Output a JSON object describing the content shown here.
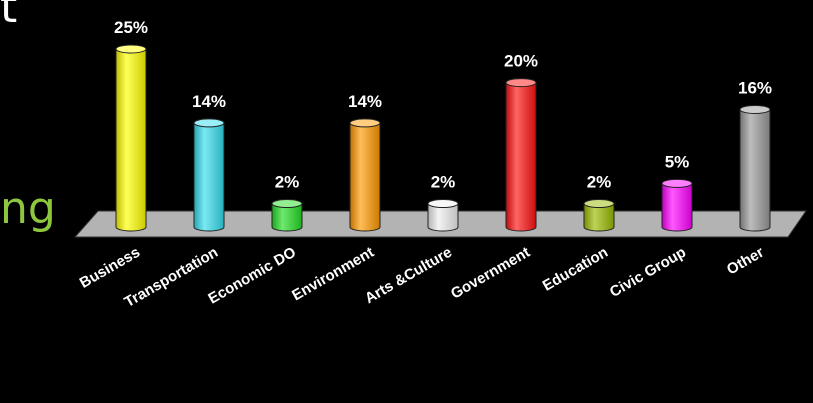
{
  "slide": {
    "fragment_top": "t",
    "fragment_mid": "ng",
    "fragment_mid_color": "#8dc63f"
  },
  "chart_data": {
    "type": "bar",
    "title": "",
    "xlabel": "",
    "ylabel": "",
    "categories": [
      "Business",
      "Transportation",
      "Economic DO",
      "Environment",
      "Arts &Culture",
      "Government",
      "Education",
      "Civic Group",
      "Other"
    ],
    "values": [
      25,
      14,
      2,
      14,
      2,
      20,
      2,
      5,
      16
    ],
    "data_labels": [
      "25%",
      "14%",
      "2%",
      "14%",
      "2%",
      "20%",
      "2%",
      "5%",
      "16%"
    ],
    "colors": [
      "#ffff00",
      "#33ddee",
      "#22dd22",
      "#ff9900",
      "#eeeeee",
      "#ff1111",
      "#99bb00",
      "#ff00ff",
      "#999999"
    ],
    "ylim": [
      0,
      25
    ],
    "grid": false,
    "legend": "none"
  }
}
